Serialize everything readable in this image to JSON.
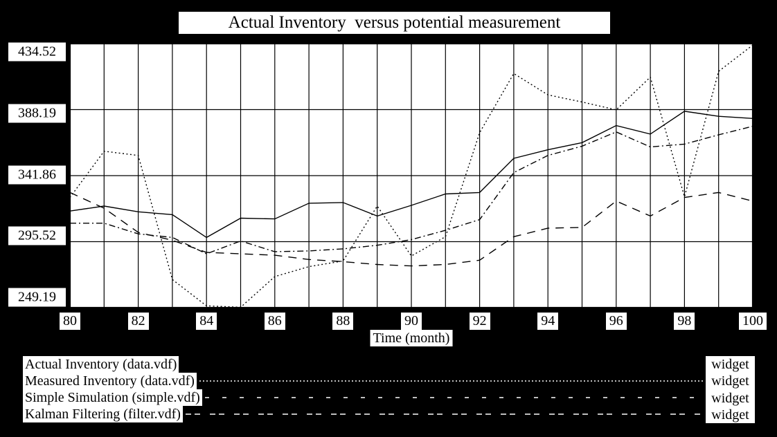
{
  "title": "Actual Inventory  versus potential measurement",
  "xaxis_title": "Time (month)",
  "widget_buttons": [
    "widget",
    "widget",
    "widget",
    "widget"
  ],
  "colors": {
    "background": "#000000",
    "panel": "#ffffff",
    "ink": "#000000",
    "legend_line": "#ffffff"
  },
  "chart_data": {
    "type": "line",
    "title": "Actual Inventory versus potential measurement",
    "xlabel": "Time (month)",
    "ylabel": "",
    "xlim": [
      80,
      100
    ],
    "ylim": [
      249.19,
      434.52
    ],
    "x_ticks": [
      80,
      82,
      84,
      86,
      88,
      90,
      92,
      94,
      96,
      98,
      100
    ],
    "y_ticks": [
      434.52,
      388.19,
      341.86,
      295.52,
      249.19
    ],
    "grid": "vertical line every 1 month, horizontal line at every y tick",
    "legend_position": "bottom strip, one row per series",
    "x": [
      80,
      81,
      82,
      83,
      84,
      85,
      86,
      87,
      88,
      89,
      90,
      91,
      92,
      93,
      94,
      95,
      96,
      97,
      98,
      99,
      100
    ],
    "series": [
      {
        "label": "Actual Inventory (data.vdf)",
        "style": "solid",
        "values": [
          317,
          320.5,
          316.5,
          314.5,
          298.5,
          312,
          311.5,
          322.5,
          323,
          313.5,
          321,
          329,
          330,
          354,
          360,
          365,
          377,
          371,
          387,
          383.5,
          382
        ]
      },
      {
        "label": "Measured Inventory (data.vdf)",
        "style": "dotted",
        "values": [
          326.5,
          359,
          356,
          269,
          250.5,
          249.5,
          271,
          278,
          282,
          320.5,
          285.5,
          299,
          372,
          413.5,
          398.5,
          393.5,
          388,
          411,
          327,
          415,
          433.5
        ]
      },
      {
        "label": "Simple Simulation (simple.vdf)",
        "style": "dashed",
        "values": [
          330,
          319,
          302,
          296.5,
          288,
          287,
          286,
          283,
          281.5,
          279.5,
          278.5,
          279.5,
          282.5,
          299,
          305,
          305.5,
          324,
          313.5,
          326.5,
          330,
          324
        ]
      },
      {
        "label": "Kalman Filtering (filter.vdf)",
        "style": "dash-dash",
        "values": [
          308.5,
          308.5,
          301,
          298.5,
          287,
          296,
          288.5,
          289,
          290.5,
          293,
          297,
          303.5,
          311,
          344,
          356,
          362.5,
          372.5,
          362,
          364,
          370.5,
          376.5
        ]
      }
    ]
  }
}
